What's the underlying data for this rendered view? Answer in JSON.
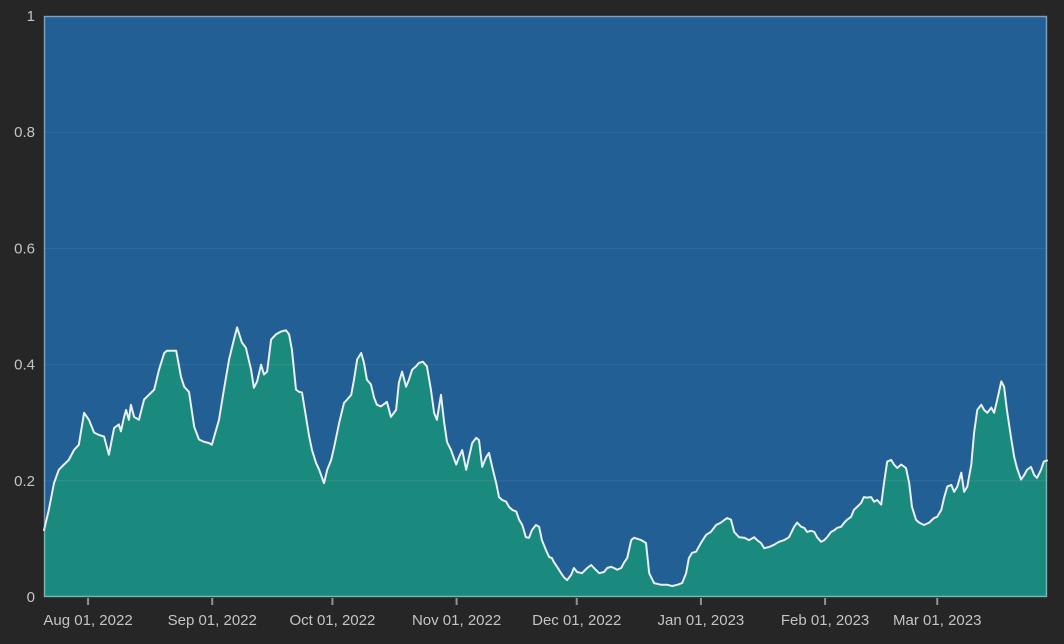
{
  "chart": {
    "theme": {
      "background": "#262626",
      "fill_above_line": "#215f94",
      "fill_below_line": "#1b8a7e",
      "boundary_line_color": "#e9eff4",
      "gridline_color": "rgba(255,255,255,0.08)",
      "plot_border_color": "rgba(215,224,231,0.5)",
      "tick_label_color": "#c2c4c6",
      "tick_mark_color": "#8f9499"
    }
  },
  "chart_data": {
    "type": "area",
    "title": "",
    "grid": true,
    "legend": null,
    "stacking_note": "teal area fills from 0 up to the boundary line; blue area fills from the line up to 1",
    "x_axis": {
      "unit": "days (0 = left edge of plot)",
      "range": [
        0,
        250.4
      ],
      "ticks": [
        {
          "day": 11,
          "label": "Aug 01, 2022"
        },
        {
          "day": 42,
          "label": "Sep 01, 2022"
        },
        {
          "day": 72,
          "label": "Oct 01, 2022"
        },
        {
          "day": 103,
          "label": "Nov 01, 2022"
        },
        {
          "day": 133,
          "label": "Dec 01, 2022"
        },
        {
          "day": 164,
          "label": "Jan 01, 2023"
        },
        {
          "day": 195,
          "label": "Feb 01, 2023"
        },
        {
          "day": 223,
          "label": "Mar 01, 2023"
        }
      ]
    },
    "y_axis": {
      "range": [
        0,
        1
      ],
      "ticks": [
        {
          "v": 0,
          "label": "0"
        },
        {
          "v": 0.2,
          "label": "0.2"
        },
        {
          "v": 0.4,
          "label": "0.4"
        },
        {
          "v": 0.6,
          "label": "0.6"
        },
        {
          "v": 0.8,
          "label": "0.8"
        },
        {
          "v": 1,
          "label": "1"
        }
      ]
    },
    "series": [
      {
        "name": "value",
        "role": "boundary-line",
        "points": [
          [
            0,
            0.115
          ],
          [
            1.2,
            0.15
          ],
          [
            2.5,
            0.196
          ],
          [
            3.7,
            0.219
          ],
          [
            5,
            0.228
          ],
          [
            6.2,
            0.236
          ],
          [
            7.5,
            0.253
          ],
          [
            8.7,
            0.262
          ],
          [
            10,
            0.317
          ],
          [
            11.2,
            0.305
          ],
          [
            12.5,
            0.283
          ],
          [
            13.7,
            0.279
          ],
          [
            15,
            0.276
          ],
          [
            16.2,
            0.245
          ],
          [
            17.5,
            0.291
          ],
          [
            18.7,
            0.297
          ],
          [
            19.2,
            0.285
          ],
          [
            20,
            0.31
          ],
          [
            20.5,
            0.322
          ],
          [
            21.2,
            0.305
          ],
          [
            21.7,
            0.331
          ],
          [
            22.5,
            0.31
          ],
          [
            23.7,
            0.305
          ],
          [
            25,
            0.34
          ],
          [
            26.2,
            0.348
          ],
          [
            27.5,
            0.357
          ],
          [
            28.7,
            0.391
          ],
          [
            30,
            0.42
          ],
          [
            30.7,
            0.424
          ],
          [
            33,
            0.424
          ],
          [
            34.2,
            0.379
          ],
          [
            35,
            0.362
          ],
          [
            36.2,
            0.353
          ],
          [
            37.5,
            0.293
          ],
          [
            38.7,
            0.271
          ],
          [
            40,
            0.267
          ],
          [
            41.2,
            0.265
          ],
          [
            41.9,
            0.262
          ],
          [
            43.7,
            0.305
          ],
          [
            44.9,
            0.357
          ],
          [
            46.2,
            0.409
          ],
          [
            47.4,
            0.443
          ],
          [
            48.2,
            0.464
          ],
          [
            49.4,
            0.438
          ],
          [
            50.4,
            0.429
          ],
          [
            51.7,
            0.391
          ],
          [
            52.4,
            0.36
          ],
          [
            53.2,
            0.371
          ],
          [
            54.2,
            0.4
          ],
          [
            54.9,
            0.383
          ],
          [
            55.7,
            0.388
          ],
          [
            56.7,
            0.443
          ],
          [
            57.9,
            0.452
          ],
          [
            59.2,
            0.457
          ],
          [
            60.4,
            0.459
          ],
          [
            61.2,
            0.452
          ],
          [
            61.9,
            0.426
          ],
          [
            62.9,
            0.357
          ],
          [
            63.7,
            0.353
          ],
          [
            64.4,
            0.352
          ],
          [
            65.4,
            0.31
          ],
          [
            66.2,
            0.276
          ],
          [
            66.9,
            0.253
          ],
          [
            67.9,
            0.231
          ],
          [
            68.7,
            0.219
          ],
          [
            69.9,
            0.196
          ],
          [
            70.7,
            0.219
          ],
          [
            71.7,
            0.236
          ],
          [
            72.4,
            0.257
          ],
          [
            73.7,
            0.3
          ],
          [
            74.9,
            0.334
          ],
          [
            75.7,
            0.34
          ],
          [
            76.7,
            0.348
          ],
          [
            77.4,
            0.374
          ],
          [
            78.2,
            0.409
          ],
          [
            79.2,
            0.42
          ],
          [
            79.9,
            0.403
          ],
          [
            80.6,
            0.374
          ],
          [
            81.6,
            0.366
          ],
          [
            82.4,
            0.343
          ],
          [
            83.1,
            0.331
          ],
          [
            84.1,
            0.328
          ],
          [
            85.6,
            0.336
          ],
          [
            86.6,
            0.31
          ],
          [
            87.9,
            0.322
          ],
          [
            88.6,
            0.369
          ],
          [
            89.4,
            0.388
          ],
          [
            90.4,
            0.362
          ],
          [
            91.1,
            0.374
          ],
          [
            91.9,
            0.391
          ],
          [
            92.9,
            0.397
          ],
          [
            93.6,
            0.403
          ],
          [
            94.6,
            0.405
          ],
          [
            95.6,
            0.397
          ],
          [
            96.6,
            0.357
          ],
          [
            97.4,
            0.317
          ],
          [
            98.1,
            0.305
          ],
          [
            99.1,
            0.348
          ],
          [
            99.9,
            0.3
          ],
          [
            100.6,
            0.267
          ],
          [
            101.6,
            0.253
          ],
          [
            102.9,
            0.228
          ],
          [
            103.6,
            0.241
          ],
          [
            104.4,
            0.253
          ],
          [
            105.4,
            0.219
          ],
          [
            106.1,
            0.241
          ],
          [
            106.9,
            0.265
          ],
          [
            107.9,
            0.274
          ],
          [
            108.6,
            0.27
          ],
          [
            109.4,
            0.224
          ],
          [
            110.4,
            0.241
          ],
          [
            111.1,
            0.248
          ],
          [
            111.9,
            0.224
          ],
          [
            112.9,
            0.196
          ],
          [
            113.6,
            0.172
          ],
          [
            114.4,
            0.167
          ],
          [
            115.4,
            0.164
          ],
          [
            116.1,
            0.155
          ],
          [
            116.9,
            0.15
          ],
          [
            117.9,
            0.147
          ],
          [
            118.6,
            0.133
          ],
          [
            119.4,
            0.124
          ],
          [
            120.3,
            0.103
          ],
          [
            121.1,
            0.102
          ],
          [
            121.8,
            0.115
          ],
          [
            122.8,
            0.124
          ],
          [
            123.6,
            0.121
          ],
          [
            124.3,
            0.098
          ],
          [
            125.3,
            0.081
          ],
          [
            126.1,
            0.069
          ],
          [
            126.8,
            0.067
          ],
          [
            127.3,
            0.06
          ],
          [
            128.1,
            0.052
          ],
          [
            129.1,
            0.041
          ],
          [
            129.8,
            0.034
          ],
          [
            130.6,
            0.029
          ],
          [
            131.6,
            0.038
          ],
          [
            132.3,
            0.05
          ],
          [
            133.1,
            0.043
          ],
          [
            134.3,
            0.041
          ],
          [
            135.6,
            0.05
          ],
          [
            136.6,
            0.055
          ],
          [
            137.3,
            0.05
          ],
          [
            138.6,
            0.041
          ],
          [
            139.8,
            0.043
          ],
          [
            140.6,
            0.05
          ],
          [
            141.6,
            0.052
          ],
          [
            142.3,
            0.05
          ],
          [
            143.1,
            0.047
          ],
          [
            144.1,
            0.05
          ],
          [
            144.8,
            0.059
          ],
          [
            145.6,
            0.067
          ],
          [
            146.6,
            0.098
          ],
          [
            147.3,
            0.102
          ],
          [
            149.1,
            0.098
          ],
          [
            150.3,
            0.093
          ],
          [
            151.1,
            0.041
          ],
          [
            152.3,
            0.024
          ],
          [
            154.1,
            0.021
          ],
          [
            155.6,
            0.021
          ],
          [
            156.8,
            0.019
          ],
          [
            158.1,
            0.021
          ],
          [
            159.3,
            0.024
          ],
          [
            160.3,
            0.041
          ],
          [
            161,
            0.067
          ],
          [
            161.8,
            0.076
          ],
          [
            162.8,
            0.078
          ],
          [
            164,
            0.093
          ],
          [
            165.3,
            0.107
          ],
          [
            166.5,
            0.112
          ],
          [
            167.8,
            0.124
          ],
          [
            169,
            0.128
          ],
          [
            170.5,
            0.136
          ],
          [
            171.5,
            0.133
          ],
          [
            172.3,
            0.112
          ],
          [
            173.5,
            0.103
          ],
          [
            174.8,
            0.102
          ],
          [
            176,
            0.098
          ],
          [
            177.3,
            0.103
          ],
          [
            178,
            0.098
          ],
          [
            179,
            0.093
          ],
          [
            179.8,
            0.084
          ],
          [
            181,
            0.086
          ],
          [
            182.3,
            0.09
          ],
          [
            183.5,
            0.095
          ],
          [
            184.8,
            0.098
          ],
          [
            186,
            0.103
          ],
          [
            187.3,
            0.121
          ],
          [
            188,
            0.128
          ],
          [
            189,
            0.121
          ],
          [
            189.8,
            0.119
          ],
          [
            190.5,
            0.112
          ],
          [
            191.5,
            0.114
          ],
          [
            192.3,
            0.112
          ],
          [
            193,
            0.103
          ],
          [
            194,
            0.095
          ],
          [
            194.8,
            0.098
          ],
          [
            195.5,
            0.103
          ],
          [
            196.5,
            0.112
          ],
          [
            197.3,
            0.115
          ],
          [
            198,
            0.119
          ],
          [
            199,
            0.121
          ],
          [
            199.8,
            0.128
          ],
          [
            200.5,
            0.133
          ],
          [
            201.5,
            0.138
          ],
          [
            202.2,
            0.15
          ],
          [
            203,
            0.155
          ],
          [
            204,
            0.162
          ],
          [
            204.7,
            0.172
          ],
          [
            205.5,
            0.171
          ],
          [
            206.5,
            0.172
          ],
          [
            207.2,
            0.164
          ],
          [
            208,
            0.167
          ],
          [
            209,
            0.159
          ],
          [
            209.7,
            0.196
          ],
          [
            210.5,
            0.233
          ],
          [
            211.5,
            0.236
          ],
          [
            212.2,
            0.228
          ],
          [
            213,
            0.222
          ],
          [
            214,
            0.228
          ],
          [
            215.2,
            0.222
          ],
          [
            216,
            0.196
          ],
          [
            216.7,
            0.155
          ],
          [
            217.7,
            0.133
          ],
          [
            218.5,
            0.128
          ],
          [
            219.7,
            0.124
          ],
          [
            221,
            0.128
          ],
          [
            222.2,
            0.136
          ],
          [
            223,
            0.138
          ],
          [
            224,
            0.15
          ],
          [
            224.7,
            0.171
          ],
          [
            225.5,
            0.19
          ],
          [
            226.5,
            0.193
          ],
          [
            227.2,
            0.181
          ],
          [
            228,
            0.19
          ],
          [
            229,
            0.214
          ],
          [
            229.7,
            0.181
          ],
          [
            230.5,
            0.19
          ],
          [
            231.5,
            0.228
          ],
          [
            232.2,
            0.283
          ],
          [
            233,
            0.322
          ],
          [
            234,
            0.331
          ],
          [
            234.7,
            0.322
          ],
          [
            235.5,
            0.317
          ],
          [
            236.5,
            0.326
          ],
          [
            237.2,
            0.317
          ],
          [
            238,
            0.34
          ],
          [
            239,
            0.371
          ],
          [
            239.7,
            0.362
          ],
          [
            240.4,
            0.322
          ],
          [
            241.4,
            0.276
          ],
          [
            242.2,
            0.241
          ],
          [
            242.9,
            0.222
          ],
          [
            243.9,
            0.202
          ],
          [
            244.7,
            0.21
          ],
          [
            245.4,
            0.219
          ],
          [
            246.4,
            0.224
          ],
          [
            247.2,
            0.21
          ],
          [
            247.9,
            0.205
          ],
          [
            248.9,
            0.219
          ],
          [
            249.6,
            0.233
          ],
          [
            250.4,
            0.235
          ]
        ]
      }
    ]
  }
}
